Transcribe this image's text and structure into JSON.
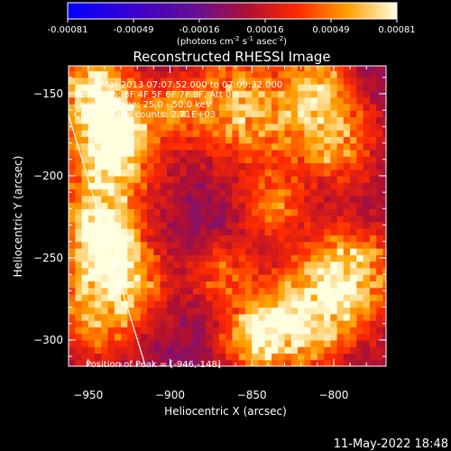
{
  "chart_data": {
    "type": "heatmap",
    "title": "Reconstructed RHESSI Image",
    "xlabel": "Heliocentric X (arcsec)",
    "ylabel": "Heliocentric Y (arcsec)",
    "xlim": [
      -962,
      -768
    ],
    "ylim": [
      -316,
      -133
    ],
    "x_ticks": [
      -950,
      -900,
      -850,
      -800
    ],
    "y_ticks": [
      -300,
      -250,
      -200,
      -150
    ],
    "colorbar": {
      "ticks": [
        "-0.00081",
        "-0.00049",
        "-0.00016",
        "0.00016",
        "0.00049",
        "0.00081"
      ],
      "range": [
        -0.00081,
        0.00081
      ],
      "unit_line": [
        "(photons cm",
        "-2",
        " s",
        "-1",
        " asec",
        "-2",
        ")"
      ]
    },
    "annotation": [
      "1-Mar-2013 07:07:52.000 to 07:09:32.000",
      "Detectors: 3F 4F 5F 6F 7F 8F, Att 0",
      "Energy Range: 25.0 - 50.0 keV",
      "Clean    Total counts: 2.71E+03"
    ],
    "peak_label": "Position of Peak = [-946,-148]",
    "peak": [
      -946,
      -148
    ],
    "limb_line": [
      [
        -962,
        -163
      ],
      [
        -915,
        -316
      ]
    ],
    "grid": false,
    "hot_spots": [
      {
        "x": -950,
        "y": -148,
        "r": 18,
        "v": 0.00081
      },
      {
        "x": -940,
        "y": -200,
        "r": 22,
        "v": 0.0007
      },
      {
        "x": -945,
        "y": -240,
        "r": 16,
        "v": 0.0008
      },
      {
        "x": -948,
        "y": -285,
        "r": 22,
        "v": 0.0006
      },
      {
        "x": -925,
        "y": -265,
        "r": 18,
        "v": 0.00045
      },
      {
        "x": -900,
        "y": -160,
        "r": 14,
        "v": 0.0004
      },
      {
        "x": -870,
        "y": -260,
        "r": 14,
        "v": 0.00045
      },
      {
        "x": -855,
        "y": -160,
        "r": 26,
        "v": 0.0007
      },
      {
        "x": -840,
        "y": -220,
        "r": 14,
        "v": 0.0005
      },
      {
        "x": -850,
        "y": -300,
        "r": 16,
        "v": 0.0006
      },
      {
        "x": -820,
        "y": -290,
        "r": 24,
        "v": 0.0007
      },
      {
        "x": -800,
        "y": -180,
        "r": 20,
        "v": 0.0006
      },
      {
        "x": -790,
        "y": -260,
        "r": 22,
        "v": 0.0007
      },
      {
        "x": -810,
        "y": -145,
        "r": 14,
        "v": 0.0005
      },
      {
        "x": -935,
        "y": -175,
        "r": 14,
        "v": 0.0006
      }
    ]
  },
  "timestamp": "11-May-2022 18:48"
}
